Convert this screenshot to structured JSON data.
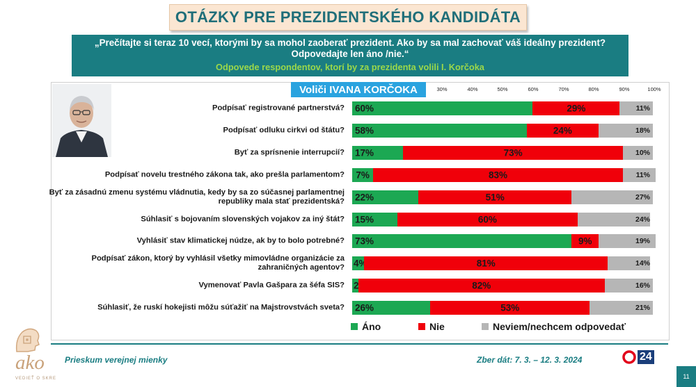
{
  "title": "OTÁZKY PRE PREZIDENTSKÉHO KANDIDÁTA",
  "question": "„Prečítajte si teraz 10 vecí, ktorými by sa mohol zaoberať prezident. Ako by sa mal zachovať váš ideálny prezident? Odpovedajte len áno /nie.“",
  "subtitle": "Odpovede respondentov, ktorí by za prezidenta volili I. Korčoka",
  "voters_label": "Voliči IVANA KORČOKA",
  "footer": {
    "left": "Prieskum verejnej mienky",
    "right": "Zber dát: 7. 3. – 12. 3. 2024",
    "logo": "ako",
    "logo_sub": "VEDIEŤ O SKRE",
    "brand_number": "24",
    "slide_number": "11"
  },
  "chart_data": {
    "type": "bar",
    "orientation": "horizontal-stacked-100",
    "x_ticks": [
      "30%",
      "40%",
      "50%",
      "60%",
      "70%",
      "80%",
      "90%",
      "100%"
    ],
    "categories": [
      "Podpísať registrované partnerstvá?",
      "Podpísať odluku cirkvi od štátu?",
      "Byť za sprísnenie interrupcií?",
      "Podpísať novelu trestného zákona tak, ako prešla parlamentom?",
      "Byť za zásadnú zmenu systému vládnutia, kedy by sa zo súčasnej  parlamentnej republiky mala stať prezidentská?",
      "Súhlasiť s bojovaním slovenských vojakov za iný štát?",
      "Vyhlásiť stav klimatickej núdze, ak by to bolo potrebné?",
      "Podpísať zákon, ktorý by vyhlásil všetky mimovládne organizácie za zahraničných agentov?",
      "Vymenovať Pavla Gašpara za šéfa SIS?",
      "Súhlasiť, že ruskí hokejisti môžu súťažiť na Majstrovstvách sveta?"
    ],
    "series": [
      {
        "name": "Áno",
        "color": "#1ca853",
        "values": [
          60,
          58,
          17,
          7,
          22,
          15,
          73,
          4,
          2,
          26
        ]
      },
      {
        "name": "Nie",
        "color": "#f0000a",
        "values": [
          29,
          24,
          73,
          83,
          51,
          60,
          9,
          81,
          82,
          53
        ]
      },
      {
        "name": "Neviem/nechcem odpovedať",
        "color": "#b6b6b6",
        "values": [
          11,
          18,
          10,
          11,
          27,
          24,
          19,
          14,
          16,
          21
        ]
      }
    ],
    "value_labels": {
      "Áno": [
        "60%",
        "58%",
        "17%",
        "7%",
        "22%",
        "15%",
        "73%",
        "4%",
        "2%",
        "26%"
      ],
      "Nie": [
        "29%",
        "24%",
        "73%",
        "83%",
        "51%",
        "60%",
        "9%",
        "81%",
        "82%",
        "53%"
      ],
      "Neviem/nechcem odpovedať": [
        "11%",
        "18%",
        "10%",
        "11%",
        "27%",
        "24%",
        "19%",
        "14%",
        "16%",
        "21%"
      ]
    }
  }
}
